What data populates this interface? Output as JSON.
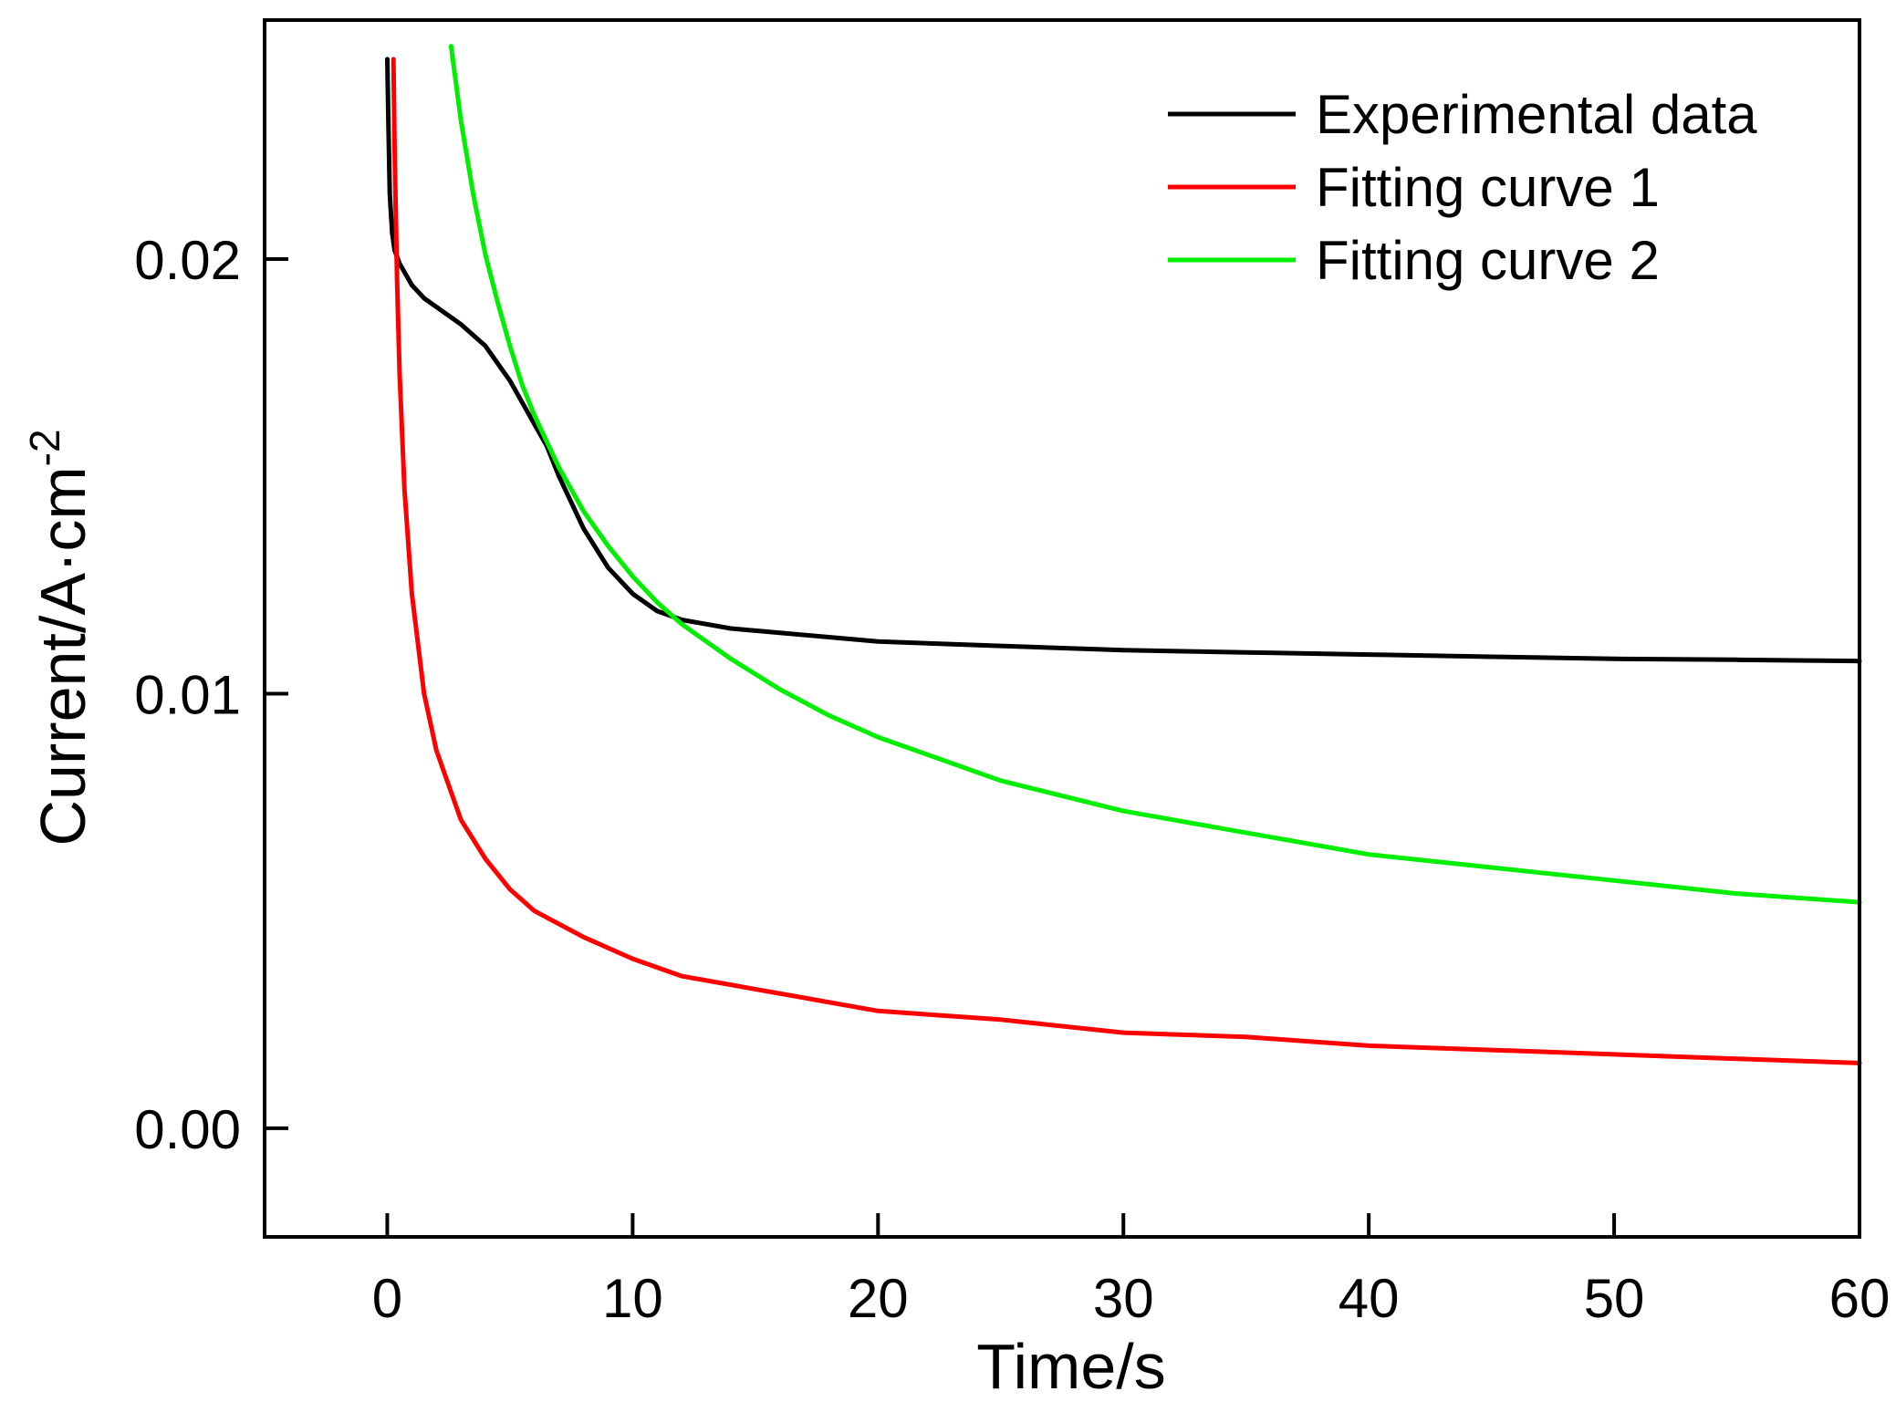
{
  "chart_data": {
    "type": "line",
    "title": "",
    "xlabel": "Time/s",
    "ylabel": "Current/A·cm",
    "ylabel_superscript": "-2",
    "xlim": [
      -5,
      60
    ],
    "ylim": [
      -0.0025,
      0.0255
    ],
    "xticks": [
      0,
      10,
      20,
      30,
      40,
      50,
      60
    ],
    "xtick_labels": [
      "0",
      "10",
      "20",
      "30",
      "40",
      "50",
      "60"
    ],
    "yticks": [
      0.0,
      0.01,
      0.02
    ],
    "ytick_labels": [
      "0.00",
      "0.01",
      "0.02"
    ],
    "grid": false,
    "legend_position": "top-right",
    "series": [
      {
        "name": "Experimental data",
        "color": "#000000",
        "x": [
          0,
          0.05,
          0.1,
          0.2,
          0.3,
          0.5,
          1,
          1.5,
          2,
          3,
          4,
          5,
          5.5,
          6,
          6.5,
          7,
          8,
          9,
          10,
          11,
          12,
          14,
          16,
          18,
          20,
          25,
          30,
          35,
          40,
          45,
          50,
          55,
          60
        ],
        "y": [
          0.0246,
          0.023,
          0.0215,
          0.0206,
          0.0202,
          0.0199,
          0.0194,
          0.0191,
          0.0189,
          0.0185,
          0.018,
          0.0172,
          0.0167,
          0.0162,
          0.0157,
          0.015,
          0.0138,
          0.0129,
          0.0123,
          0.0119,
          0.0117,
          0.0115,
          0.0114,
          0.0113,
          0.0112,
          0.0111,
          0.011,
          0.01095,
          0.0109,
          0.01085,
          0.0108,
          0.01078,
          0.01075
        ]
      },
      {
        "name": "Fitting curve 1",
        "color": "#ff0000",
        "x": [
          0.25,
          0.3,
          0.4,
          0.5,
          0.7,
          1,
          1.5,
          2,
          3,
          4,
          5,
          6,
          8,
          10,
          12,
          15,
          20,
          25,
          30,
          35,
          40,
          45,
          50,
          55,
          60
        ],
        "y": [
          0.0246,
          0.0225,
          0.0195,
          0.0174,
          0.0147,
          0.0123,
          0.01,
          0.0087,
          0.0071,
          0.0062,
          0.0055,
          0.005,
          0.0044,
          0.0039,
          0.0035,
          0.0032,
          0.0027,
          0.0025,
          0.0022,
          0.0021,
          0.0019,
          0.0018,
          0.0017,
          0.0016,
          0.0015
        ]
      },
      {
        "name": "Fitting curve 2",
        "color": "#00ee00",
        "x": [
          2.6,
          3,
          3.5,
          4,
          4.5,
          5,
          5.5,
          6,
          7,
          8,
          9,
          10,
          11,
          12,
          14,
          16,
          18,
          20,
          25,
          30,
          35,
          40,
          45,
          50,
          55,
          60
        ],
        "y": [
          0.0249,
          0.0232,
          0.0215,
          0.0201,
          0.019,
          0.018,
          0.0171,
          0.0164,
          0.0152,
          0.0142,
          0.0134,
          0.0127,
          0.0121,
          0.0116,
          0.0108,
          0.0101,
          0.0095,
          0.009,
          0.008,
          0.0073,
          0.0068,
          0.0063,
          0.006,
          0.0057,
          0.0054,
          0.0052
        ]
      }
    ]
  }
}
